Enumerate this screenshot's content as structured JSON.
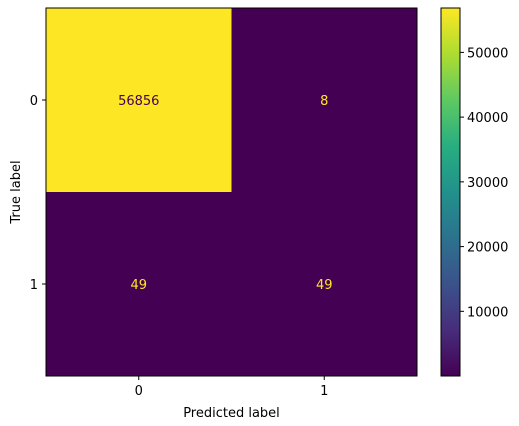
{
  "chart_data": {
    "type": "heatmap",
    "title": "",
    "xlabel": "Predicted label",
    "ylabel": "True label",
    "x_categories": [
      "0",
      "1"
    ],
    "y_categories": [
      "0",
      "1"
    ],
    "values": [
      [
        56856,
        8
      ],
      [
        49,
        49
      ]
    ],
    "colormap": "viridis",
    "colorbar": {
      "min": 8,
      "max": 56856,
      "ticks": [
        10000,
        20000,
        30000,
        40000,
        50000
      ]
    },
    "annotation_colors": {
      "on_light": "#440154",
      "on_dark": "#fde725"
    }
  }
}
